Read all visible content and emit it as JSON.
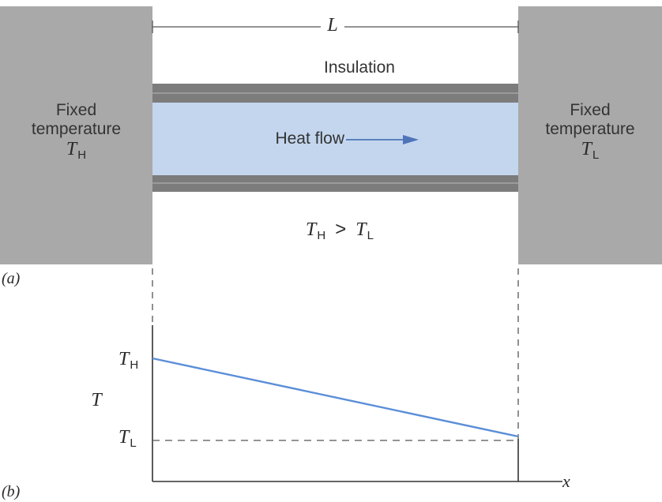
{
  "part_a": {
    "length_label": "L",
    "insulation_label": "Insulation",
    "heat_flow_label": "Heat flow",
    "left_wall": {
      "line1": "Fixed",
      "line2": "temperature",
      "symbol": "T",
      "subscript": "H"
    },
    "right_wall": {
      "line1": "Fixed",
      "line2": "temperature",
      "symbol": "T",
      "subscript": "L"
    },
    "relation": {
      "left_symbol": "T",
      "left_sub": "H",
      "operator": ">",
      "right_symbol": "T",
      "right_sub": "L"
    },
    "panel_label": "(a)"
  },
  "part_b": {
    "y_axis_label": "T",
    "x_axis_label": "x",
    "high_label": {
      "symbol": "T",
      "subscript": "H"
    },
    "low_label": {
      "symbol": "T",
      "subscript": "L"
    },
    "panel_label": "(b)"
  },
  "colors": {
    "wall": "#a9a9a9",
    "rod": "#c3d6ee",
    "insulation": "#7c7c7c",
    "profile_line": "#5b8ed8",
    "axis": "#333333"
  }
}
